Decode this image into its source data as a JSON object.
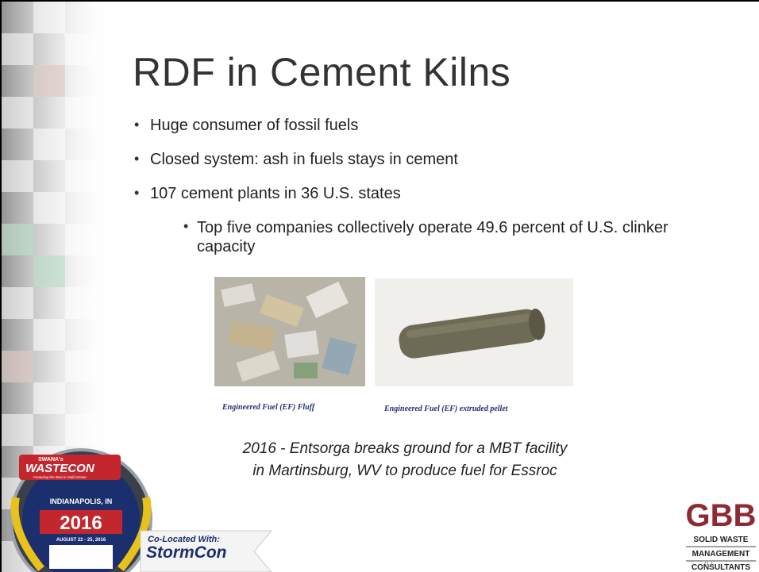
{
  "slide": {
    "title": "RDF in Cement Kilns",
    "bullets": [
      "Huge consumer of fossil fuels",
      "Closed system: ash in fuels stays in cement",
      "107 cement plants in 36 U.S. states"
    ],
    "sub_bullets": [
      "Top five companies collectively operate 49.6 percent of U.S. clinker capacity"
    ],
    "images": [
      {
        "caption": "Engineered Fuel (EF) Fluff"
      },
      {
        "caption": "Engineered Fuel (EF) extruded pellet"
      }
    ],
    "note": [
      "2016 -  Entsorga breaks ground for a MBT facility",
      "in Martinsburg, WV to produce fuel for Essroc"
    ],
    "slide_number": "20"
  },
  "logos": {
    "wastecon": {
      "org": "SWANA's",
      "name": "WASTECON",
      "tagline": "Featuring the Best in Solid Waste",
      "city": "INDIANAPOLIS, IN",
      "year": "2016",
      "dates": "AUGUST 22 - 25, 2016"
    },
    "colocated": {
      "label": "Co-Located With:",
      "name": "StormCon"
    },
    "gbb": {
      "name": "GBB",
      "lines": [
        "SOLID WASTE",
        "MANAGEMENT",
        "CONSULTANTS"
      ]
    }
  }
}
